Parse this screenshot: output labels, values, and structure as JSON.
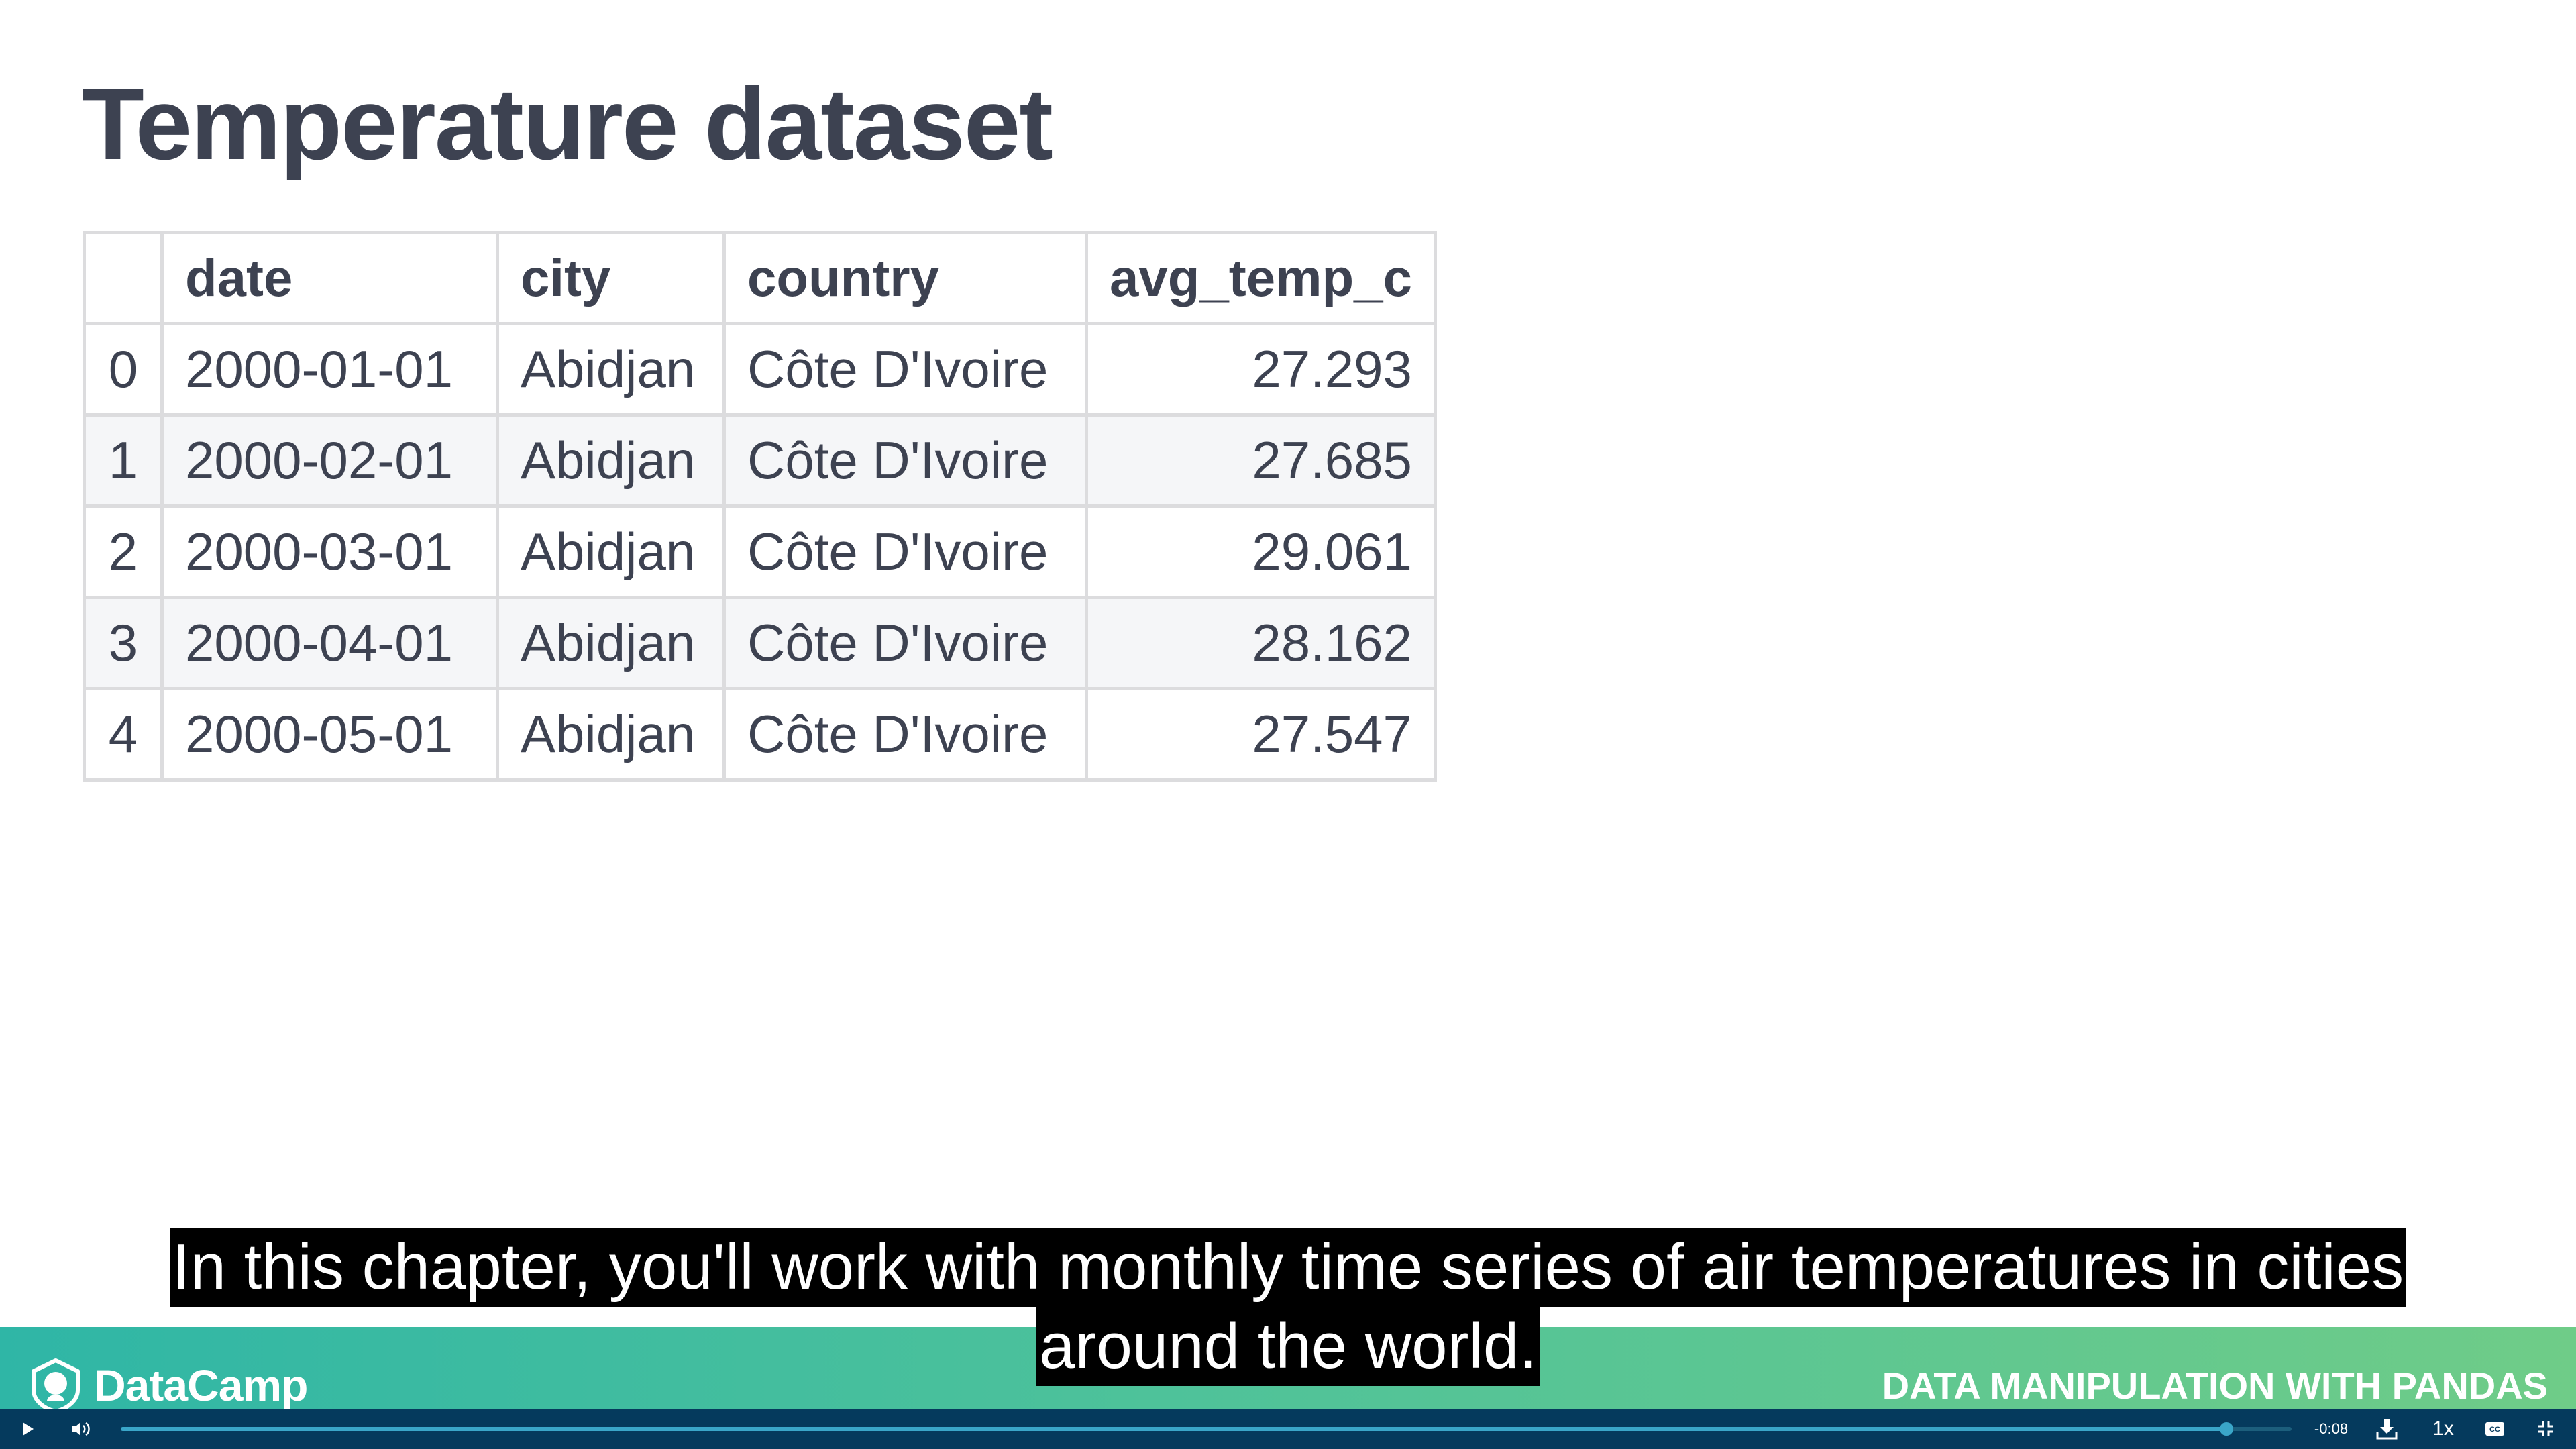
{
  "slide": {
    "title": "Temperature dataset"
  },
  "table": {
    "columns": [
      "",
      "date",
      "city",
      "country",
      "avg_temp_c"
    ],
    "rows": [
      [
        "0",
        "2000-01-01",
        "Abidjan",
        "Côte D'Ivoire",
        "27.293"
      ],
      [
        "1",
        "2000-02-01",
        "Abidjan",
        "Côte D'Ivoire",
        "27.685"
      ],
      [
        "2",
        "2000-03-01",
        "Abidjan",
        "Côte D'Ivoire",
        "29.061"
      ],
      [
        "3",
        "2000-04-01",
        "Abidjan",
        "Côte D'Ivoire",
        "28.162"
      ],
      [
        "4",
        "2000-05-01",
        "Abidjan",
        "Côte D'Ivoire",
        "27.547"
      ]
    ]
  },
  "caption": {
    "line1": "In this chapter, you'll work with monthly time series of air temperatures in cities",
    "line2": "around the world."
  },
  "footer": {
    "logo_text": "DataCamp",
    "course_name": "DATA MANIPULATION WITH PANDAS",
    "logo_icon": "datacamp-logo-icon"
  },
  "player": {
    "time_remaining": "-0:08",
    "speed": "1x",
    "progress": 0.97,
    "icons": {
      "play": "play-icon",
      "volume": "volume-icon",
      "download": "download-icon",
      "captions": "closed-captions-icon",
      "exit_fullscreen": "exit-fullscreen-icon"
    }
  },
  "colors": {
    "title": "#3d4251",
    "footer_start": "#2fb6a6",
    "footer_end": "#6fcc88",
    "player_bg": "#053a5d",
    "progress": "#3aa6c9"
  }
}
